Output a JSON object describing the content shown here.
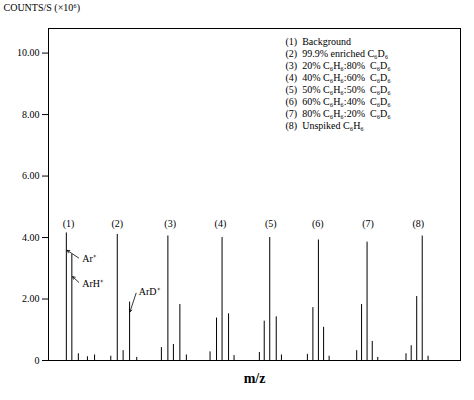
{
  "chart_data": {
    "type": "stem",
    "xlabel": "m/z",
    "ylabel": "COUNTS/S (×10⁶)",
    "xlim": [
      -0.2,
      12.5
    ],
    "ylim": [
      0,
      10.8
    ],
    "yticks": [
      0,
      {
        "value": 2,
        "label": "2.00"
      },
      {
        "value": 4,
        "label": "4.00"
      },
      {
        "value": 6,
        "label": "6.00"
      },
      {
        "value": 8,
        "label": "8.00"
      },
      {
        "value": 10,
        "label": "10.00"
      }
    ],
    "tick_labels": "y",
    "grid": false,
    "legend": "upper right",
    "series": [
      {
        "name": "(1)  Background",
        "x": [
          0.35,
          0.52,
          0.72,
          1.0,
          1.22
        ],
        "values": [
          4.15,
          3.45,
          0.22,
          0.12,
          0.18
        ]
      },
      {
        "name": "(2)  99.9% enriched C₆D₆",
        "x": [
          1.72,
          1.92,
          2.1,
          2.3,
          2.52
        ],
        "values": [
          0.14,
          4.1,
          0.32,
          1.9,
          0.1
        ]
      },
      {
        "name": "(3)  20% C₆H₆:80%  C₆D₆",
        "x": [
          3.28,
          3.48,
          3.65,
          3.85,
          4.05
        ],
        "values": [
          0.42,
          4.05,
          0.52,
          1.82,
          0.18
        ]
      },
      {
        "name": "(4)  40% C₆H₆:60%  C₆D₆",
        "x": [
          4.78,
          4.98,
          5.15,
          5.35,
          5.52
        ],
        "values": [
          0.28,
          1.38,
          4.0,
          1.52,
          0.16
        ]
      },
      {
        "name": "(5)  50% C₆H₆:50%  C₆D₆",
        "x": [
          6.3,
          6.45,
          6.62,
          6.82,
          6.98
        ],
        "values": [
          0.26,
          1.28,
          4.0,
          1.42,
          0.18
        ]
      },
      {
        "name": "(6)  60% C₆H₆:40%  C₆D₆",
        "x": [
          7.78,
          7.95,
          8.12,
          8.28,
          8.45
        ],
        "values": [
          0.2,
          1.72,
          3.92,
          1.08,
          0.14
        ]
      },
      {
        "name": "(7)  80% C₆H₆:20%  C₆D₆",
        "x": [
          9.3,
          9.45,
          9.62,
          9.78,
          9.95
        ],
        "values": [
          0.32,
          1.82,
          3.85,
          0.62,
          0.1
        ]
      },
      {
        "name": "(8)  Unspiked C₆H₆",
        "x": [
          10.82,
          10.98,
          11.15,
          11.32,
          11.5
        ],
        "values": [
          0.22,
          0.48,
          2.08,
          4.05,
          0.14
        ]
      }
    ],
    "annotations": [
      {
        "text": "(1)",
        "x": 0.42,
        "y": 4.35
      },
      {
        "text": "(2)",
        "x": 1.92,
        "y": 4.35
      },
      {
        "text": "(3)",
        "x": 3.55,
        "y": 4.35
      },
      {
        "text": "(4)",
        "x": 5.1,
        "y": 4.35
      },
      {
        "text": "(5)",
        "x": 6.65,
        "y": 4.35
      },
      {
        "text": "(6)",
        "x": 8.1,
        "y": 4.35
      },
      {
        "text": "(7)",
        "x": 9.65,
        "y": 4.35
      },
      {
        "text": "(8)",
        "x": 11.2,
        "y": 4.35
      },
      {
        "text": "Ar⁺",
        "x": 0.78,
        "y": 3.3,
        "arrow_to": [
          0.35,
          3.6
        ]
      },
      {
        "text": "ArH⁺",
        "x": 0.78,
        "y": 2.5,
        "arrow_to": [
          0.52,
          2.75
        ]
      },
      {
        "text": "ArD⁺",
        "x": 2.52,
        "y": 2.25,
        "arrow_to": [
          2.3,
          1.55
        ]
      }
    ]
  }
}
